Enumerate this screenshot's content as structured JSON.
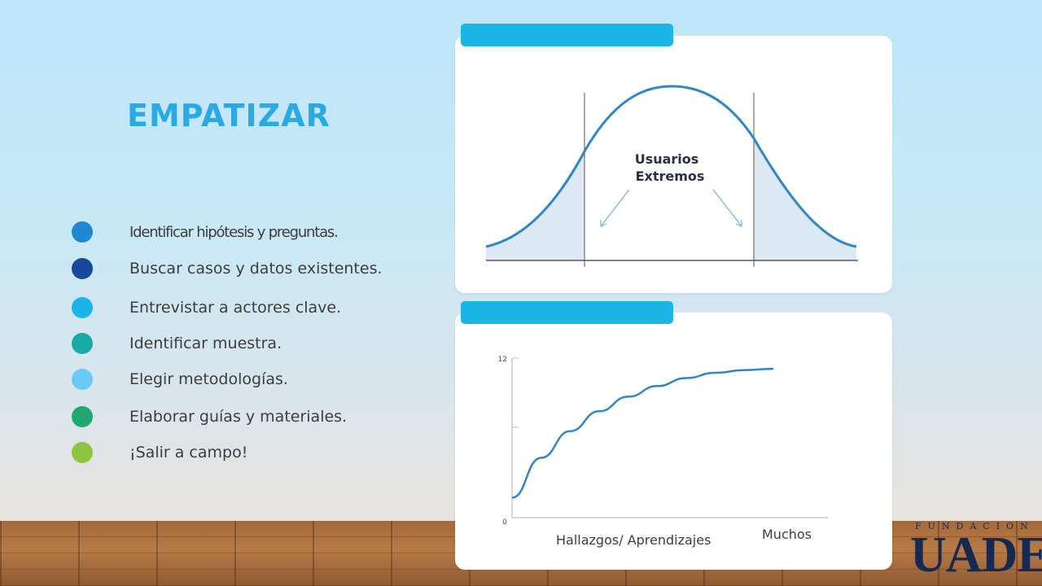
{
  "title": "EMPATIZAR",
  "bullets": [
    {
      "label": "Identificar hipótesis y preguntas.",
      "color": "#1f88d0"
    },
    {
      "label": "Buscar casos y datos existentes.",
      "color": "#17489a"
    },
    {
      "label": "Entrevistar a actores clave.",
      "color": "#1bb5ea"
    },
    {
      "label": "Identificar muestra.",
      "color": "#1aa9a4"
    },
    {
      "label": "Elegir metodologías.",
      "color": "#69cbf3"
    },
    {
      "label": "Elaborar guías y materiales.",
      "color": "#21a771"
    },
    {
      "label": "¡Salir a campo!",
      "color": "#8cc63f"
    }
  ],
  "bell_card": {
    "label": "Usuarios Extremos",
    "label_lines": [
      "Usuarios",
      "Extremos"
    ],
    "curve_color": "#2f86c8"
  },
  "chart_data": {
    "type": "line",
    "x_labels": [
      "Hallazgos/ Aprendizajes",
      "Muchos"
    ],
    "y_ticks": [
      "0",
      "12"
    ],
    "ylim": [
      0,
      12
    ],
    "series": [
      {
        "points": [
          [
            0,
            1.5
          ],
          [
            1,
            4.5
          ],
          [
            2,
            6.5
          ],
          [
            3,
            8.0
          ],
          [
            4,
            9.1
          ],
          [
            5,
            9.9
          ],
          [
            6,
            10.5
          ],
          [
            7,
            10.9
          ],
          [
            8,
            11.1
          ],
          [
            9,
            11.2
          ]
        ]
      }
    ],
    "grid": false
  },
  "logo": {
    "top": "FUNDACION",
    "main": "UADE"
  }
}
